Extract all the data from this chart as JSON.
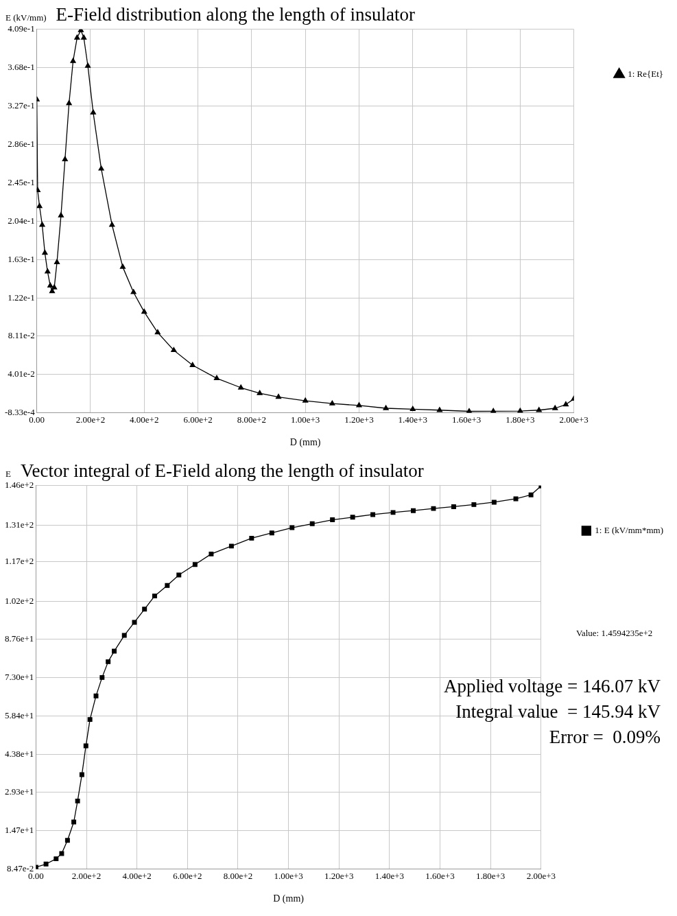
{
  "chart_data": [
    {
      "type": "line",
      "title": "E-Field distribution along the length of insulator",
      "xlabel": "D (mm)",
      "ylabel": "E (kV/mm)",
      "marker": "triangle",
      "grid": true,
      "legend": "right",
      "xlim": [
        0,
        2000
      ],
      "xticks": [
        {
          "value": 0,
          "label": "0.00"
        },
        {
          "value": 200,
          "label": "2.00e+2"
        },
        {
          "value": 400,
          "label": "4.00e+2"
        },
        {
          "value": 600,
          "label": "6.00e+2"
        },
        {
          "value": 800,
          "label": "8.00e+2"
        },
        {
          "value": 1000,
          "label": "1.00e+3"
        },
        {
          "value": 1200,
          "label": "1.20e+3"
        },
        {
          "value": 1400,
          "label": "1.40e+3"
        },
        {
          "value": 1600,
          "label": "1.60e+3"
        },
        {
          "value": 1800,
          "label": "1.80e+3"
        },
        {
          "value": 2000,
          "label": "2.00e+3"
        }
      ],
      "ylim": [
        -0.000833,
        0.409
      ],
      "yticks": [
        {
          "value": -0.000833,
          "label": "-8.33e-4"
        },
        {
          "value": 0.0401,
          "label": "4.01e-2"
        },
        {
          "value": 0.0811,
          "label": "8.11e-2"
        },
        {
          "value": 0.122,
          "label": "1.22e-1"
        },
        {
          "value": 0.163,
          "label": "1.63e-1"
        },
        {
          "value": 0.204,
          "label": "2.04e-1"
        },
        {
          "value": 0.245,
          "label": "2.45e-1"
        },
        {
          "value": 0.286,
          "label": "2.86e-1"
        },
        {
          "value": 0.327,
          "label": "3.27e-1"
        },
        {
          "value": 0.368,
          "label": "3.68e-1"
        },
        {
          "value": 0.409,
          "label": "4.09e-1"
        }
      ],
      "series": [
        {
          "name": "1: Re{Et}",
          "color": "#000000",
          "x": [
            0,
            3,
            10,
            20,
            30,
            40,
            50,
            57,
            65,
            75,
            90,
            105,
            120,
            135,
            150,
            164,
            175,
            190,
            210,
            240,
            280,
            320,
            360,
            400,
            450,
            510,
            580,
            670,
            760,
            830,
            900,
            1000,
            1100,
            1200,
            1300,
            1400,
            1500,
            1610,
            1700,
            1800,
            1870,
            1930,
            1970,
            2000
          ],
          "values": [
            0.334,
            0.237,
            0.22,
            0.2,
            0.17,
            0.15,
            0.135,
            0.129,
            0.133,
            0.16,
            0.21,
            0.27,
            0.33,
            0.375,
            0.4,
            0.408,
            0.4,
            0.37,
            0.32,
            0.26,
            0.2,
            0.155,
            0.128,
            0.107,
            0.085,
            0.066,
            0.05,
            0.036,
            0.026,
            0.02,
            0.016,
            0.012,
            0.009,
            0.007,
            0.004,
            0.003,
            0.002,
            0.0007,
            0.0008,
            0.001,
            0.002,
            0.004,
            0.008,
            0.014
          ]
        }
      ]
    },
    {
      "type": "line",
      "title": "Vector integral of E-Field along the length of insulator",
      "xlabel": "D (mm)",
      "ylabel": "E",
      "marker": "square",
      "grid": true,
      "legend": "right",
      "annotations": [
        "Value: 1.4594235e+2",
        "Applied voltage = 146.07 kV",
        "Integral value  = 145.94 kV",
        "Error =  0.09%"
      ],
      "xlim": [
        0,
        2000
      ],
      "xticks": [
        {
          "value": 0,
          "label": "0.00"
        },
        {
          "value": 200,
          "label": "2.00e+2"
        },
        {
          "value": 400,
          "label": "4.00e+2"
        },
        {
          "value": 600,
          "label": "6.00e+2"
        },
        {
          "value": 800,
          "label": "8.00e+2"
        },
        {
          "value": 1000,
          "label": "1.00e+3"
        },
        {
          "value": 1200,
          "label": "1.20e+3"
        },
        {
          "value": 1400,
          "label": "1.40e+3"
        },
        {
          "value": 1600,
          "label": "1.60e+3"
        },
        {
          "value": 1800,
          "label": "1.80e+3"
        },
        {
          "value": 2000,
          "label": "2.00e+3"
        }
      ],
      "ylim": [
        0.0847,
        146
      ],
      "yticks": [
        {
          "value": 0.0847,
          "label": "8.47e-2"
        },
        {
          "value": 14.7,
          "label": "1.47e+1"
        },
        {
          "value": 29.3,
          "label": "2.93e+1"
        },
        {
          "value": 43.8,
          "label": "4.38e+1"
        },
        {
          "value": 58.4,
          "label": "5.84e+1"
        },
        {
          "value": 73,
          "label": "7.30e+1"
        },
        {
          "value": 87.6,
          "label": "8.76e+1"
        },
        {
          "value": 102,
          "label": "1.02e+2"
        },
        {
          "value": 117,
          "label": "1.17e+2"
        },
        {
          "value": 131,
          "label": "1.31e+2"
        },
        {
          "value": 146,
          "label": "1.46e+2"
        }
      ],
      "series": [
        {
          "name": "1: E (kV/mm*mm)",
          "color": "#000000",
          "x": [
            0,
            40,
            80,
            102,
            125,
            150,
            165,
            182,
            198,
            214,
            238,
            262,
            286,
            310,
            350,
            390,
            430,
            470,
            520,
            566,
            630,
            694,
            774,
            854,
            934,
            1014,
            1094,
            1174,
            1254,
            1334,
            1414,
            1494,
            1574,
            1654,
            1734,
            1814,
            1900,
            1960,
            2000
          ],
          "values": [
            0.8,
            2,
            4,
            6,
            11,
            18,
            26,
            36,
            47,
            57,
            66,
            73,
            79,
            83,
            89,
            94,
            99,
            104,
            108,
            112,
            116,
            120,
            123,
            126,
            128,
            130,
            131.5,
            133,
            134,
            135,
            135.8,
            136.5,
            137.3,
            138,
            138.8,
            139.7,
            141,
            142.5,
            145.9
          ]
        }
      ]
    }
  ]
}
